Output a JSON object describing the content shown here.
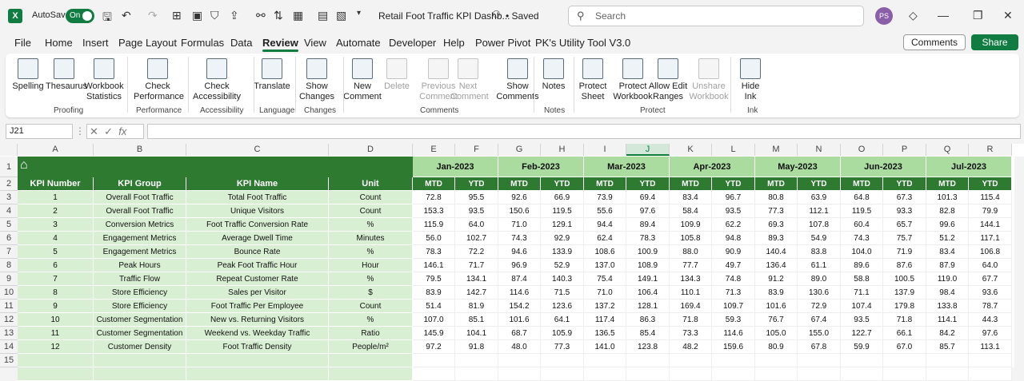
{
  "titlebar": {
    "autosave_label": "AutoSave",
    "toggle_label": "On",
    "doc_title": "Retail Foot Traffic KPI Dashb...",
    "saved": "• Saved",
    "search_placeholder": "Search",
    "avatar": "PS"
  },
  "menus": [
    "File",
    "Home",
    "Insert",
    "Page Layout",
    "Formulas",
    "Data",
    "Review",
    "View",
    "Automate",
    "Developer",
    "Help",
    "Power Pivot",
    "PK's Utility Tool V3.0"
  ],
  "active_menu": "Review",
  "comments_btn": "Comments",
  "share_btn": "Share",
  "ribbon": {
    "buttons": [
      {
        "label": "Spelling",
        "disabled": false
      },
      {
        "label": "Thesaurus",
        "disabled": false
      },
      {
        "label": "Workbook Statistics",
        "disabled": false
      },
      {
        "label": "Check Performance",
        "disabled": false
      },
      {
        "label": "Check Accessibility",
        "disabled": false
      },
      {
        "label": "Translate",
        "disabled": false
      },
      {
        "label": "Show Changes",
        "disabled": false
      },
      {
        "label": "New Comment",
        "disabled": false
      },
      {
        "label": "Delete",
        "disabled": true
      },
      {
        "label": "Previous Comment",
        "disabled": true
      },
      {
        "label": "Next Comment",
        "disabled": true
      },
      {
        "label": "Show Comments",
        "disabled": false
      },
      {
        "label": "Notes",
        "disabled": false
      },
      {
        "label": "Protect Sheet",
        "disabled": false
      },
      {
        "label": "Protect Workbook",
        "disabled": false
      },
      {
        "label": "Allow Edit Ranges",
        "disabled": false
      },
      {
        "label": "Unshare Workbook",
        "disabled": true
      },
      {
        "label": "Hide Ink",
        "disabled": false
      }
    ],
    "groups": [
      "Proofing",
      "Performance",
      "Accessibility",
      "Language",
      "Changes",
      "Comments",
      "Notes",
      "Protect",
      "Ink"
    ]
  },
  "formula_bar": {
    "name_box": "J21",
    "fx": "fx",
    "value": ""
  },
  "columns": [
    "A",
    "B",
    "C",
    "D",
    "E",
    "F",
    "G",
    "H",
    "I",
    "J",
    "K",
    "L",
    "M",
    "N",
    "O",
    "P",
    "Q",
    "R"
  ],
  "selected_column": "J",
  "rows": [
    "1",
    "2",
    "3",
    "4",
    "5",
    "6",
    "7",
    "8",
    "9",
    "10",
    "11",
    "12",
    "13",
    "14",
    "15"
  ],
  "table": {
    "headers": [
      "KPI Number",
      "KPI Group",
      "KPI Name",
      "Unit"
    ],
    "months": [
      "Jan-2023",
      "Feb-2023",
      "Mar-2023",
      "Apr-2023",
      "May-2023",
      "Jun-2023",
      "Jul-2023"
    ],
    "sub": [
      "MTD",
      "YTD"
    ],
    "kpis": [
      {
        "num": "1",
        "group": "Overall Foot Traffic",
        "name": "Total Foot Traffic",
        "unit": "Count",
        "vals": [
          "72.8",
          "95.5",
          "92.6",
          "66.9",
          "73.9",
          "69.4",
          "83.4",
          "96.7",
          "80.8",
          "63.9",
          "64.8",
          "67.3",
          "101.3",
          "115.4"
        ]
      },
      {
        "num": "2",
        "group": "Overall Foot Traffic",
        "name": "Unique Visitors",
        "unit": "Count",
        "vals": [
          "153.3",
          "93.5",
          "150.6",
          "119.5",
          "55.6",
          "97.6",
          "58.4",
          "93.5",
          "77.3",
          "112.1",
          "119.5",
          "93.3",
          "82.8",
          "79.9"
        ]
      },
      {
        "num": "3",
        "group": "Conversion Metrics",
        "name": "Foot Traffic Conversion Rate",
        "unit": "%",
        "vals": [
          "115.9",
          "64.0",
          "71.0",
          "129.1",
          "94.4",
          "89.4",
          "109.9",
          "62.2",
          "69.3",
          "107.8",
          "60.4",
          "65.7",
          "99.6",
          "144.1"
        ]
      },
      {
        "num": "4",
        "group": "Engagement Metrics",
        "name": "Average Dwell Time",
        "unit": "Minutes",
        "vals": [
          "56.0",
          "102.7",
          "74.3",
          "92.9",
          "62.4",
          "78.3",
          "105.8",
          "94.8",
          "89.3",
          "54.9",
          "74.3",
          "75.7",
          "51.2",
          "117.1"
        ]
      },
      {
        "num": "5",
        "group": "Engagement Metrics",
        "name": "Bounce Rate",
        "unit": "%",
        "vals": [
          "78.3",
          "72.2",
          "94.6",
          "133.9",
          "108.6",
          "100.9",
          "88.0",
          "90.9",
          "140.4",
          "83.8",
          "104.0",
          "71.9",
          "83.4",
          "106.8"
        ]
      },
      {
        "num": "6",
        "group": "Peak Hours",
        "name": "Peak Foot Traffic Hour",
        "unit": "Hour",
        "vals": [
          "146.1",
          "71.7",
          "96.9",
          "52.9",
          "137.0",
          "108.9",
          "77.7",
          "49.7",
          "136.4",
          "61.1",
          "89.6",
          "87.6",
          "87.9",
          "64.0"
        ]
      },
      {
        "num": "7",
        "group": "Traffic Flow",
        "name": "Repeat Customer Rate",
        "unit": "%",
        "vals": [
          "79.5",
          "134.1",
          "87.4",
          "140.3",
          "75.4",
          "149.1",
          "134.3",
          "74.8",
          "91.2",
          "89.0",
          "58.8",
          "100.5",
          "119.0",
          "67.7"
        ]
      },
      {
        "num": "8",
        "group": "Store Efficiency",
        "name": "Sales per Visitor",
        "unit": "$",
        "vals": [
          "83.9",
          "142.7",
          "114.6",
          "71.5",
          "71.0",
          "106.4",
          "110.1",
          "71.3",
          "83.9",
          "130.6",
          "71.1",
          "137.9",
          "98.4",
          "93.6"
        ]
      },
      {
        "num": "9",
        "group": "Store Efficiency",
        "name": "Foot Traffic Per Employee",
        "unit": "Count",
        "vals": [
          "51.4",
          "81.9",
          "154.2",
          "123.6",
          "137.2",
          "128.1",
          "169.4",
          "109.7",
          "101.6",
          "72.9",
          "107.4",
          "179.8",
          "133.8",
          "78.7"
        ]
      },
      {
        "num": "10",
        "group": "Customer Segmentation",
        "name": "New vs. Returning Visitors",
        "unit": "%",
        "vals": [
          "107.0",
          "85.1",
          "101.6",
          "64.1",
          "117.4",
          "86.3",
          "71.8",
          "59.3",
          "76.7",
          "67.4",
          "93.5",
          "71.8",
          "114.1",
          "44.3"
        ]
      },
      {
        "num": "11",
        "group": "Customer Segmentation",
        "name": "Weekend vs. Weekday Traffic",
        "unit": "Ratio",
        "vals": [
          "145.9",
          "104.1",
          "68.7",
          "105.9",
          "136.5",
          "85.4",
          "73.3",
          "114.6",
          "105.0",
          "155.0",
          "122.7",
          "66.1",
          "84.2",
          "97.6"
        ]
      },
      {
        "num": "12",
        "group": "Customer Density",
        "name": "Foot Traffic Density",
        "unit": "People/m²",
        "vals": [
          "97.2",
          "91.8",
          "48.0",
          "77.3",
          "141.0",
          "123.8",
          "48.2",
          "159.6",
          "80.9",
          "67.8",
          "59.9",
          "67.0",
          "85.7",
          "113.1"
        ]
      }
    ]
  }
}
